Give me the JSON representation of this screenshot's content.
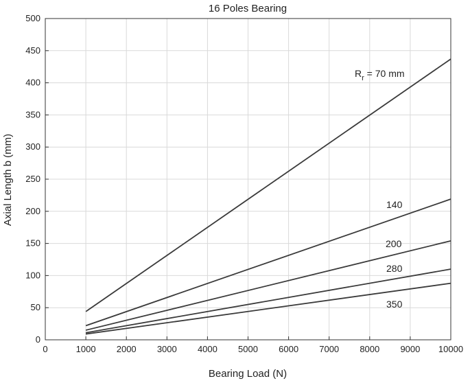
{
  "chart_data": {
    "type": "line",
    "title": "16 Poles Bearing",
    "xlabel": "Bearing Load (N)",
    "ylabel": "Axial Length b (mm)",
    "xlim": [
      0,
      10000
    ],
    "ylim": [
      0,
      500
    ],
    "xticks": [
      0,
      1000,
      2000,
      3000,
      4000,
      5000,
      6000,
      7000,
      8000,
      9000,
      10000
    ],
    "yticks": [
      0,
      50,
      100,
      150,
      200,
      250,
      300,
      350,
      400,
      450,
      500
    ],
    "grid": true,
    "series": [
      {
        "label_main": "R",
        "label_sub": "r",
        "label_rest": " = 70 mm",
        "x": [
          1000,
          10000
        ],
        "y": [
          44,
          437
        ],
        "color": "#3a3a3a"
      },
      {
        "label_main": "140",
        "x": [
          1000,
          10000
        ],
        "y": [
          22,
          219
        ],
        "color": "#3a3a3a"
      },
      {
        "label_main": "200",
        "x": [
          1000,
          10000
        ],
        "y": [
          15,
          154
        ],
        "color": "#3a3a3a"
      },
      {
        "label_main": "280",
        "x": [
          1000,
          10000
        ],
        "y": [
          11,
          110
        ],
        "color": "#3a3a3a"
      },
      {
        "label_main": "350",
        "x": [
          1000,
          10000
        ],
        "y": [
          9,
          88
        ],
        "color": "#3a3a3a"
      }
    ]
  }
}
